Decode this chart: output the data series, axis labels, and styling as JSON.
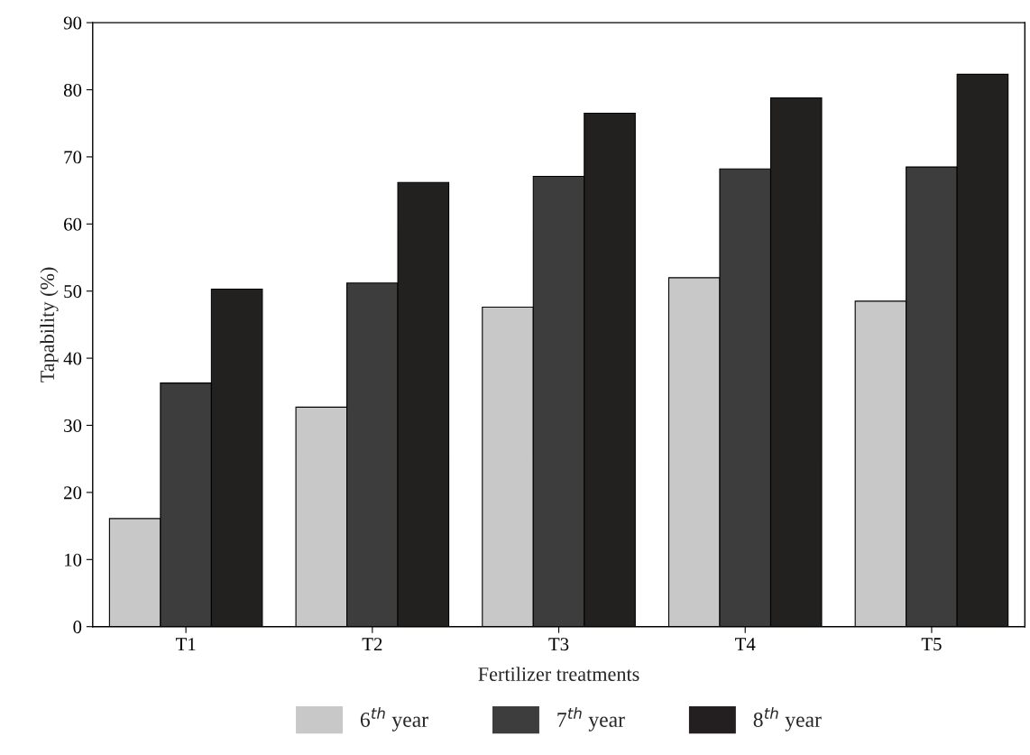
{
  "chart_data": {
    "type": "bar",
    "xlabel": "Fertilizer treatments",
    "ylabel": "Tapability (%)",
    "categories": [
      "T1",
      "T2",
      "T3",
      "T4",
      "T5"
    ],
    "series": [
      {
        "name": "6$^{th}$ year",
        "color": "#c8c8c8",
        "values": [
          16.1,
          32.7,
          47.6,
          52.0,
          48.5
        ]
      },
      {
        "name": "7$^{th}$ year",
        "color": "#3d3d3d",
        "values": [
          36.3,
          51.2,
          67.1,
          68.2,
          68.5
        ]
      },
      {
        "name": "8$^{th}$ year",
        "color": "#231f20",
        "values": [
          50.3,
          66.2,
          76.5,
          78.8,
          82.3
        ]
      }
    ],
    "ylim": [
      0,
      90
    ],
    "yticks": [
      0,
      10,
      20,
      30,
      40,
      50,
      60,
      70,
      80,
      90
    ],
    "grid": false,
    "legend": "bottom"
  }
}
